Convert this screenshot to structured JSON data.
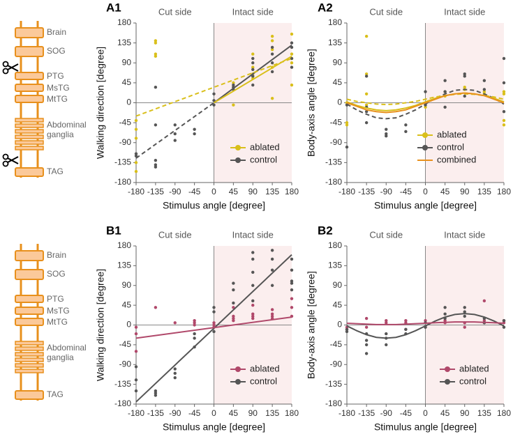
{
  "chart_data": [
    {
      "type": "scatter",
      "panel": "A1",
      "xlabel": "Stimulus angle [degree]",
      "ylabel": "Walking direction [degree]",
      "regions": [
        "Cut side",
        "Intact side"
      ],
      "legend": "lower right",
      "xlim": [
        -180,
        180
      ],
      "xticks": [
        -180,
        -135,
        -90,
        -45,
        0,
        45,
        90,
        135,
        180
      ],
      "ylim": [
        -180,
        180
      ],
      "yticks": [
        -180,
        -135,
        -90,
        -45,
        0,
        45,
        90,
        135,
        180
      ],
      "series": [
        {
          "name": "ablated",
          "color": "#d9bf1a",
          "x": [
            -180,
            -180,
            -180,
            -180,
            -180,
            -135,
            -135,
            -135,
            -135,
            45,
            45,
            45,
            45,
            90,
            90,
            90,
            90,
            90,
            135,
            135,
            135,
            135,
            135,
            180,
            180,
            180,
            180,
            180
          ],
          "values": [
            -40,
            -60,
            -80,
            -135,
            -155,
            140,
            135,
            110,
            105,
            30,
            35,
            45,
            -5,
            55,
            60,
            65,
            80,
            110,
            150,
            140,
            120,
            80,
            10,
            155,
            110,
            100,
            90,
            40
          ]
        },
        {
          "name": "control",
          "color": "#555555",
          "x": [
            -180,
            -180,
            -135,
            -135,
            -135,
            -135,
            -135,
            -90,
            -90,
            -90,
            -45,
            -45,
            0,
            0,
            0,
            45,
            45,
            45,
            90,
            90,
            90,
            90,
            90,
            135,
            135,
            135,
            135,
            180,
            180,
            180,
            180
          ],
          "values": [
            -120,
            -115,
            -130,
            -140,
            -145,
            -50,
            35,
            -50,
            -70,
            -85,
            -60,
            -70,
            -5,
            5,
            20,
            30,
            35,
            40,
            100,
            90,
            75,
            60,
            40,
            125,
            110,
            90,
            70,
            135,
            125,
            100,
            80
          ]
        }
      ],
      "fits": [
        {
          "color": "#555555",
          "dashed": true,
          "x": [
            -180,
            0
          ],
          "values": [
            -125,
            0
          ]
        },
        {
          "color": "#555555",
          "dashed": false,
          "x": [
            0,
            180
          ],
          "values": [
            0,
            130
          ]
        },
        {
          "color": "#d9bf1a",
          "dashed": true,
          "x": [
            -180,
            180
          ],
          "values": [
            -30,
            100
          ]
        },
        {
          "color": "#d9bf1a",
          "dashed": false,
          "x": [
            0,
            180
          ],
          "values": [
            0,
            105
          ]
        }
      ]
    },
    {
      "type": "scatter",
      "panel": "A2",
      "xlabel": "Stimulus angle [degree]",
      "ylabel": "Body-axis angle [degree]",
      "regions": [
        "Cut side",
        "Intact side"
      ],
      "legend": "lower right",
      "xlim": [
        -180,
        180
      ],
      "xticks": [
        -180,
        -135,
        -90,
        -45,
        0,
        45,
        90,
        135,
        180
      ],
      "ylim": [
        -180,
        180
      ],
      "yticks": [
        -180,
        -135,
        -90,
        -45,
        0,
        45,
        90,
        135,
        180
      ],
      "series": [
        {
          "name": "ablated",
          "color": "#d9bf1a",
          "x": [
            -180,
            -180,
            -180,
            -135,
            -135,
            -135,
            -135,
            0,
            0,
            45,
            45,
            90,
            90,
            135,
            135,
            180,
            180,
            180,
            180
          ],
          "values": [
            -45,
            -50,
            0,
            150,
            65,
            20,
            -5,
            -10,
            -5,
            15,
            25,
            30,
            35,
            20,
            25,
            -40,
            -50,
            20,
            25
          ]
        },
        {
          "name": "control",
          "color": "#555555",
          "x": [
            -180,
            -180,
            -135,
            -135,
            -135,
            -135,
            -90,
            -90,
            -90,
            -45,
            -45,
            0,
            0,
            45,
            45,
            45,
            90,
            90,
            90,
            135,
            135,
            180,
            180,
            180
          ],
          "values": [
            -100,
            -5,
            -10,
            -45,
            60,
            -20,
            -60,
            -70,
            -75,
            -50,
            -65,
            25,
            -5,
            50,
            25,
            -10,
            65,
            60,
            15,
            50,
            30,
            100,
            45,
            -20
          ]
        }
      ],
      "fits": [
        {
          "color": "#555555",
          "dashed": true,
          "x": [
            -180,
            -157.5,
            -135,
            -112.5,
            -90,
            -67.5,
            -45,
            -22.5,
            0,
            22.5,
            45,
            67.5,
            90,
            112.5,
            135,
            157.5,
            180
          ],
          "values": [
            -3,
            -16,
            -26,
            -34,
            -36,
            -34,
            -26,
            -16,
            -3,
            10,
            20,
            28,
            30,
            28,
            20,
            10,
            -3
          ]
        },
        {
          "color": "#d9bf1a",
          "dashed": true,
          "x": [
            -180,
            -157.5,
            -135,
            -112.5,
            -90,
            -67.5,
            -45,
            -22.5,
            0,
            22.5,
            45,
            67.5,
            90,
            112.5,
            135,
            157.5,
            180
          ],
          "values": [
            8,
            3,
            0,
            -3,
            -4,
            -3,
            0,
            3,
            8,
            13,
            16,
            19,
            20,
            19,
            16,
            13,
            8
          ]
        },
        {
          "color": "#d9bf1a",
          "dashed": false,
          "x": [
            -180,
            -157.5,
            -135,
            -112.5,
            -90,
            -67.5,
            -45,
            -22.5,
            0,
            22.5,
            45,
            67.5,
            90,
            112.5,
            135,
            157.5,
            180
          ],
          "values": [
            2,
            -6,
            -12,
            -16,
            -18,
            -16,
            -12,
            -6,
            2,
            10,
            16,
            20,
            22,
            20,
            16,
            10,
            2
          ]
        },
        {
          "name": "combined",
          "color": "#e8901c",
          "dashed": false,
          "x": [
            -180,
            -157.5,
            -135,
            -112.5,
            -90,
            -67.5,
            -45,
            -22.5,
            0,
            22.5,
            45,
            67.5,
            90,
            112.5,
            135,
            157.5,
            180
          ],
          "values": [
            0,
            -8,
            -16,
            -20,
            -22,
            -20,
            -16,
            -8,
            0,
            8,
            16,
            20,
            22,
            20,
            16,
            8,
            0
          ]
        }
      ]
    },
    {
      "type": "scatter",
      "panel": "B1",
      "xlabel": "Stimulus angle [degree]",
      "ylabel": "Walking direction [degree]",
      "regions": [
        "Cut side",
        "Intact side"
      ],
      "legend": "lower right",
      "xlim": [
        -180,
        180
      ],
      "xticks": [
        -180,
        -135,
        -90,
        -45,
        0,
        45,
        90,
        135,
        180
      ],
      "ylim": [
        -180,
        180
      ],
      "yticks": [
        -180,
        -135,
        -90,
        -45,
        0,
        45,
        90,
        135,
        180
      ],
      "series": [
        {
          "name": "ablated",
          "color": "#b0486a",
          "x": [
            -180,
            -180,
            -180,
            -135,
            -90,
            -45,
            -45,
            -45,
            0,
            0,
            0,
            45,
            45,
            45,
            45,
            90,
            90,
            90,
            90,
            135,
            135,
            135,
            135,
            180,
            180,
            180
          ],
          "values": [
            -5,
            -20,
            -60,
            40,
            5,
            10,
            5,
            0,
            -5,
            0,
            5,
            10,
            15,
            20,
            40,
            15,
            20,
            25,
            45,
            15,
            20,
            25,
            35,
            20,
            40,
            60
          ]
        },
        {
          "name": "control",
          "color": "#555555",
          "x": [
            -180,
            -180,
            -180,
            -135,
            -135,
            -135,
            -90,
            -90,
            -90,
            -45,
            -45,
            -45,
            0,
            0,
            0,
            45,
            45,
            45,
            90,
            90,
            90,
            90,
            90,
            135,
            135,
            135,
            135,
            180,
            180,
            180,
            180,
            180
          ],
          "values": [
            -95,
            -125,
            -150,
            -150,
            -155,
            -160,
            -100,
            -110,
            -120,
            -50,
            -30,
            -20,
            40,
            30,
            -15,
            50,
            80,
            95,
            165,
            150,
            120,
            90,
            55,
            170,
            150,
            125,
            90,
            150,
            125,
            100,
            95,
            80
          ]
        }
      ],
      "fits": [
        {
          "color": "#555555",
          "dashed": false,
          "x": [
            -180,
            180
          ],
          "values": [
            -175,
            160
          ]
        },
        {
          "color": "#b0486a",
          "dashed": false,
          "x": [
            -180,
            180
          ],
          "values": [
            -30,
            18
          ]
        }
      ]
    },
    {
      "type": "scatter",
      "panel": "B2",
      "xlabel": "Stimulus angle [degree]",
      "ylabel": "Body-axis angle [degree]",
      "regions": [
        "Cut side",
        "Intact side"
      ],
      "legend": "lower right",
      "xlim": [
        -180,
        180
      ],
      "xticks": [
        -180,
        -135,
        -90,
        -45,
        0,
        45,
        90,
        135,
        180
      ],
      "ylim": [
        -180,
        180
      ],
      "yticks": [
        -180,
        -135,
        -90,
        -45,
        0,
        45,
        90,
        135,
        180
      ],
      "series": [
        {
          "name": "ablated",
          "color": "#b0486a",
          "x": [
            -180,
            -180,
            -135,
            -135,
            -90,
            -90,
            -45,
            -45,
            -45,
            0,
            0,
            45,
            45,
            90,
            90,
            135,
            135,
            135,
            180,
            180
          ],
          "values": [
            -5,
            -10,
            15,
            -5,
            10,
            5,
            10,
            5,
            -10,
            10,
            -5,
            10,
            5,
            5,
            -5,
            55,
            10,
            5,
            5,
            10
          ]
        },
        {
          "name": "control",
          "color": "#555555",
          "x": [
            -180,
            -180,
            -135,
            -135,
            -135,
            -135,
            -90,
            -90,
            -90,
            -45,
            -45,
            0,
            0,
            45,
            45,
            45,
            90,
            90,
            90,
            135,
            135,
            180,
            180
          ],
          "values": [
            -15,
            -10,
            -65,
            -45,
            -35,
            -20,
            -45,
            -30,
            -20,
            -20,
            -10,
            5,
            -5,
            40,
            25,
            15,
            40,
            30,
            20,
            15,
            5,
            10,
            -5
          ]
        }
      ],
      "fits": [
        {
          "color": "#555555",
          "dashed": false,
          "x": [
            -180,
            -157.5,
            -135,
            -112.5,
            -90,
            -67.5,
            -45,
            -22.5,
            0,
            22.5,
            45,
            67.5,
            90,
            112.5,
            135,
            157.5,
            180
          ],
          "values": [
            -2,
            -13,
            -22,
            -28,
            -30,
            -28,
            -22,
            -13,
            -2,
            9,
            18,
            24,
            26,
            24,
            18,
            9,
            -2
          ]
        },
        {
          "color": "#b0486a",
          "dashed": false,
          "x": [
            -180,
            -157.5,
            -135,
            -112.5,
            -90,
            -67.5,
            -45,
            -22.5,
            0,
            22.5,
            45,
            67.5,
            90,
            112.5,
            135,
            157.5,
            180
          ],
          "values": [
            4,
            3,
            2,
            1,
            1,
            1,
            2,
            3,
            4,
            5,
            6,
            7,
            7,
            7,
            6,
            5,
            4
          ]
        }
      ]
    }
  ],
  "diagrams": [
    {
      "labels": [
        "Brain",
        "SOG",
        "PTG",
        "MsTG",
        "MtTG",
        "Abdominal",
        "ganglia",
        "TAG"
      ]
    },
    {
      "labels": [
        "Brain",
        "SOG",
        "PTG",
        "MsTG",
        "MtTG",
        "Abdominal",
        "ganglia",
        "TAG"
      ]
    }
  ]
}
